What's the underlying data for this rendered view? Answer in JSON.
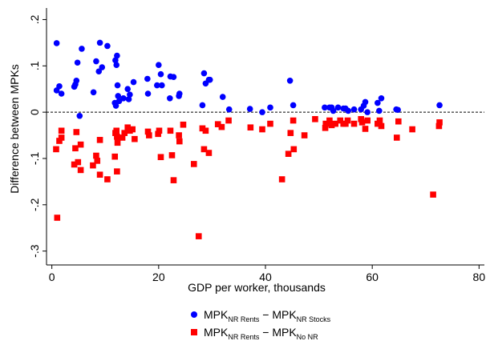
{
  "chart_data": {
    "type": "scatter",
    "xlabel": "GDP per worker, thousands",
    "ylabel": "Difference between MPKs",
    "xlim": [
      -1,
      81
    ],
    "ylim": [
      -0.33,
      0.225
    ],
    "xticks": [
      {
        "v": 0,
        "label": "0"
      },
      {
        "v": 20,
        "label": "20"
      },
      {
        "v": 40,
        "label": "40"
      },
      {
        "v": 60,
        "label": "60"
      },
      {
        "v": 80,
        "label": "80"
      }
    ],
    "yticks": [
      {
        "v": 0.2,
        "label": ".2"
      },
      {
        "v": 0.1,
        "label": ".1"
      },
      {
        "v": 0,
        "label": "0"
      },
      {
        "v": -0.1,
        "label": "-.1"
      },
      {
        "v": -0.2,
        "label": "-.2"
      },
      {
        "v": -0.3,
        "label": "-.3"
      }
    ],
    "reference_line": {
      "y": 0,
      "style": "dashed"
    },
    "grid": false,
    "legend_placement": "bottom",
    "series": [
      {
        "legend_parts": [
          "MPK",
          "NR Rents",
          " − MPK",
          "NR Stocks"
        ],
        "color": "#0000ff",
        "marker": "circle",
        "points": [
          [
            0.9,
            0.149
          ],
          [
            0.9,
            0.047
          ],
          [
            1.4,
            0.056
          ],
          [
            1.8,
            0.04
          ],
          [
            4.2,
            0.055
          ],
          [
            4.4,
            0.06
          ],
          [
            4.6,
            0.068
          ],
          [
            4.8,
            0.107
          ],
          [
            5.2,
            -0.008
          ],
          [
            5.6,
            0.137
          ],
          [
            7.8,
            0.043
          ],
          [
            8.3,
            0.11
          ],
          [
            8.8,
            0.088
          ],
          [
            9.0,
            0.15
          ],
          [
            9.4,
            0.097
          ],
          [
            10.4,
            0.143
          ],
          [
            11.8,
            0.02
          ],
          [
            11.9,
            0.112
          ],
          [
            12.0,
            0.014
          ],
          [
            12.1,
            0.102
          ],
          [
            12.2,
            0.122
          ],
          [
            12.3,
            0.058
          ],
          [
            12.4,
            0.035
          ],
          [
            12.6,
            0.024
          ],
          [
            13.4,
            0.03
          ],
          [
            14.2,
            0.05
          ],
          [
            14.4,
            0.028
          ],
          [
            14.6,
            0.038
          ],
          [
            15.3,
            0.065
          ],
          [
            17.9,
            0.072
          ],
          [
            18.0,
            0.04
          ],
          [
            19.7,
            0.058
          ],
          [
            20.0,
            0.102
          ],
          [
            20.4,
            0.082
          ],
          [
            20.6,
            0.058
          ],
          [
            22.1,
            0.03
          ],
          [
            22.2,
            0.077
          ],
          [
            22.8,
            0.076
          ],
          [
            23.8,
            0.035
          ],
          [
            23.9,
            0.04
          ],
          [
            28.2,
            0.015
          ],
          [
            28.5,
            0.084
          ],
          [
            28.8,
            0.062
          ],
          [
            29.4,
            0.07
          ],
          [
            29.6,
            0.07
          ],
          [
            32.0,
            0.033
          ],
          [
            33.2,
            0.006
          ],
          [
            37.1,
            0.007
          ],
          [
            39.4,
            0.0
          ],
          [
            40.9,
            0.01
          ],
          [
            44.6,
            0.068
          ],
          [
            45.2,
            0.015
          ],
          [
            51.1,
            0.01
          ],
          [
            52.0,
            0.01
          ],
          [
            52.4,
            0.01
          ],
          [
            52.7,
            0.003
          ],
          [
            53.6,
            0.01
          ],
          [
            54.6,
            0.008
          ],
          [
            55.0,
            0.008
          ],
          [
            55.5,
            0.003
          ],
          [
            56.6,
            0.006
          ],
          [
            57.9,
            0.006
          ],
          [
            58.4,
            0.014
          ],
          [
            58.7,
            0.022
          ],
          [
            59.1,
            0.0
          ],
          [
            61.0,
            0.02
          ],
          [
            61.3,
            0.003
          ],
          [
            61.7,
            0.03
          ],
          [
            64.5,
            0.006
          ],
          [
            64.8,
            0.005
          ],
          [
            72.6,
            0.015
          ]
        ]
      },
      {
        "legend_parts": [
          "MPK",
          "NR Rents",
          " − MPK",
          "No NR"
        ],
        "color": "#ff0000",
        "marker": "square",
        "points": [
          [
            0.8,
            -0.08
          ],
          [
            1.0,
            -0.228
          ],
          [
            1.4,
            -0.062
          ],
          [
            1.8,
            -0.04
          ],
          [
            1.8,
            -0.055
          ],
          [
            4.2,
            -0.113
          ],
          [
            4.4,
            -0.078
          ],
          [
            4.6,
            -0.043
          ],
          [
            4.9,
            -0.108
          ],
          [
            5.4,
            -0.07
          ],
          [
            5.4,
            -0.125
          ],
          [
            7.7,
            -0.115
          ],
          [
            8.3,
            -0.094
          ],
          [
            8.5,
            -0.105
          ],
          [
            9.0,
            -0.06
          ],
          [
            9.0,
            -0.135
          ],
          [
            10.4,
            -0.145
          ],
          [
            11.8,
            -0.096
          ],
          [
            11.9,
            -0.045
          ],
          [
            12.1,
            -0.04
          ],
          [
            12.2,
            -0.053
          ],
          [
            12.2,
            -0.128
          ],
          [
            12.3,
            -0.066
          ],
          [
            13.2,
            -0.055
          ],
          [
            13.6,
            -0.045
          ],
          [
            14.2,
            -0.033
          ],
          [
            14.6,
            -0.04
          ],
          [
            15.1,
            -0.037
          ],
          [
            15.5,
            -0.058
          ],
          [
            18.0,
            -0.042
          ],
          [
            18.2,
            -0.05
          ],
          [
            19.9,
            -0.047
          ],
          [
            20.1,
            -0.04
          ],
          [
            20.4,
            -0.097
          ],
          [
            22.2,
            -0.04
          ],
          [
            22.5,
            -0.093
          ],
          [
            22.8,
            -0.147
          ],
          [
            23.8,
            -0.05
          ],
          [
            23.9,
            -0.063
          ],
          [
            24.6,
            -0.027
          ],
          [
            26.6,
            -0.112
          ],
          [
            27.5,
            -0.268
          ],
          [
            28.2,
            -0.035
          ],
          [
            28.5,
            -0.08
          ],
          [
            28.8,
            -0.04
          ],
          [
            29.4,
            -0.088
          ],
          [
            31.1,
            -0.026
          ],
          [
            31.8,
            -0.032
          ],
          [
            33.1,
            -0.018
          ],
          [
            37.2,
            -0.033
          ],
          [
            39.4,
            -0.037
          ],
          [
            40.9,
            -0.025
          ],
          [
            43.1,
            -0.145
          ],
          [
            44.3,
            -0.09
          ],
          [
            44.7,
            -0.045
          ],
          [
            45.2,
            -0.018
          ],
          [
            45.3,
            -0.08
          ],
          [
            47.3,
            -0.05
          ],
          [
            49.3,
            -0.015
          ],
          [
            51.2,
            -0.034
          ],
          [
            51.3,
            -0.025
          ],
          [
            52.0,
            -0.018
          ],
          [
            52.4,
            -0.028
          ],
          [
            53.1,
            -0.025
          ],
          [
            54.0,
            -0.018
          ],
          [
            54.6,
            -0.025
          ],
          [
            55.0,
            -0.025
          ],
          [
            55.4,
            -0.018
          ],
          [
            56.6,
            -0.025
          ],
          [
            57.9,
            -0.015
          ],
          [
            58.1,
            -0.022
          ],
          [
            58.7,
            -0.036
          ],
          [
            59.1,
            -0.018
          ],
          [
            61.0,
            -0.025
          ],
          [
            61.4,
            -0.018
          ],
          [
            61.7,
            -0.03
          ],
          [
            64.6,
            -0.055
          ],
          [
            64.9,
            -0.02
          ],
          [
            67.5,
            -0.037
          ],
          [
            71.4,
            -0.178
          ],
          [
            72.5,
            -0.03
          ],
          [
            72.6,
            -0.022
          ]
        ]
      }
    ]
  }
}
